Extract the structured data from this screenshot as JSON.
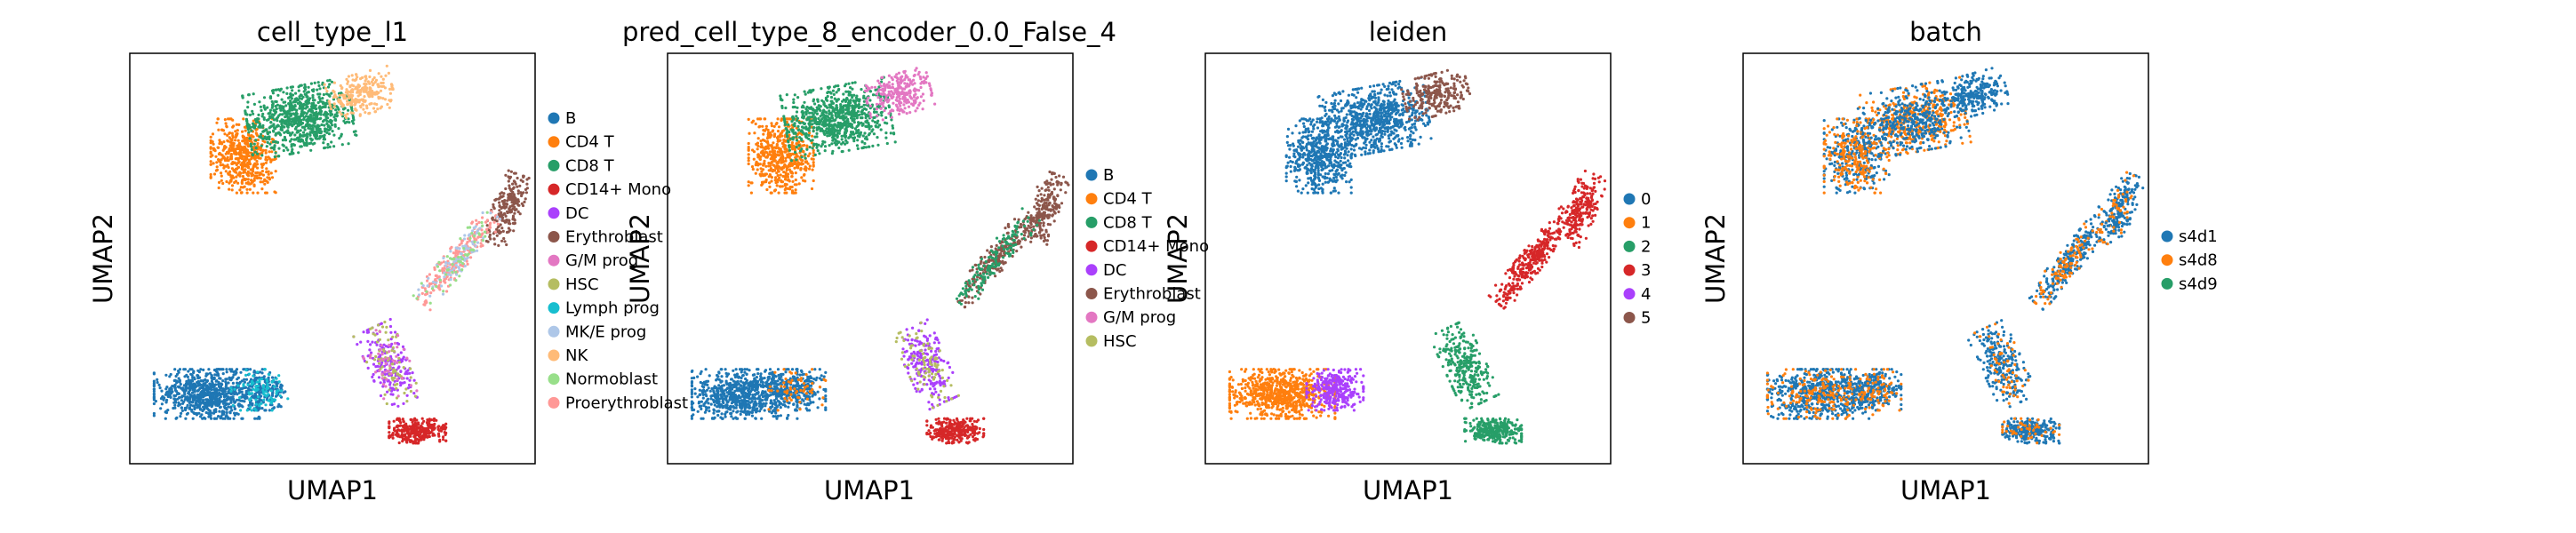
{
  "chart_data": [
    {
      "type": "scatter",
      "title": "cell_type_l1",
      "xlabel": "UMAP1",
      "ylabel": "UMAP2",
      "grid": false,
      "ticks": false,
      "legend_placement": "right",
      "series": [
        {
          "name": "B",
          "color": "#1f77b4"
        },
        {
          "name": "CD4 T",
          "color": "#ff7f0e"
        },
        {
          "name": "CD8 T",
          "color": "#279e68"
        },
        {
          "name": "CD14+ Mono",
          "color": "#d62728"
        },
        {
          "name": "DC",
          "color": "#aa40fc"
        },
        {
          "name": "Erythroblast",
          "color": "#8c564b"
        },
        {
          "name": "G/M prog",
          "color": "#e377c2"
        },
        {
          "name": "HSC",
          "color": "#b5bd61"
        },
        {
          "name": "Lymph prog",
          "color": "#17becf"
        },
        {
          "name": "MK/E prog",
          "color": "#aec7e8"
        },
        {
          "name": "NK",
          "color": "#ffbb78"
        },
        {
          "name": "Normoblast",
          "color": "#98df8a"
        },
        {
          "name": "Proerythroblast",
          "color": "#ff9896"
        }
      ]
    },
    {
      "type": "scatter",
      "title": "pred_cell_type_8_encoder_0.0_False_4",
      "xlabel": "UMAP1",
      "ylabel": "UMAP2",
      "grid": false,
      "ticks": false,
      "legend_placement": "right",
      "series": [
        {
          "name": "B",
          "color": "#1f77b4"
        },
        {
          "name": "CD4 T",
          "color": "#ff7f0e"
        },
        {
          "name": "CD8 T",
          "color": "#279e68"
        },
        {
          "name": "CD14+ Mono",
          "color": "#d62728"
        },
        {
          "name": "DC",
          "color": "#aa40fc"
        },
        {
          "name": "Erythroblast",
          "color": "#8c564b"
        },
        {
          "name": "G/M prog",
          "color": "#e377c2"
        },
        {
          "name": "HSC",
          "color": "#b5bd61"
        }
      ]
    },
    {
      "type": "scatter",
      "title": "leiden",
      "xlabel": "UMAP1",
      "ylabel": "UMAP2",
      "grid": false,
      "ticks": false,
      "legend_placement": "right",
      "series": [
        {
          "name": "0",
          "color": "#1f77b4"
        },
        {
          "name": "1",
          "color": "#ff7f0e"
        },
        {
          "name": "2",
          "color": "#279e68"
        },
        {
          "name": "3",
          "color": "#d62728"
        },
        {
          "name": "4",
          "color": "#aa40fc"
        },
        {
          "name": "5",
          "color": "#8c564b"
        }
      ]
    },
    {
      "type": "scatter",
      "title": "batch",
      "xlabel": "UMAP1",
      "ylabel": "UMAP2",
      "grid": false,
      "ticks": false,
      "legend_placement": "right",
      "series": [
        {
          "name": "s4d1",
          "color": "#1f77b4"
        },
        {
          "name": "s4d8",
          "color": "#ff7f0e"
        },
        {
          "name": "s4d9",
          "color": "#279e68"
        }
      ]
    }
  ]
}
